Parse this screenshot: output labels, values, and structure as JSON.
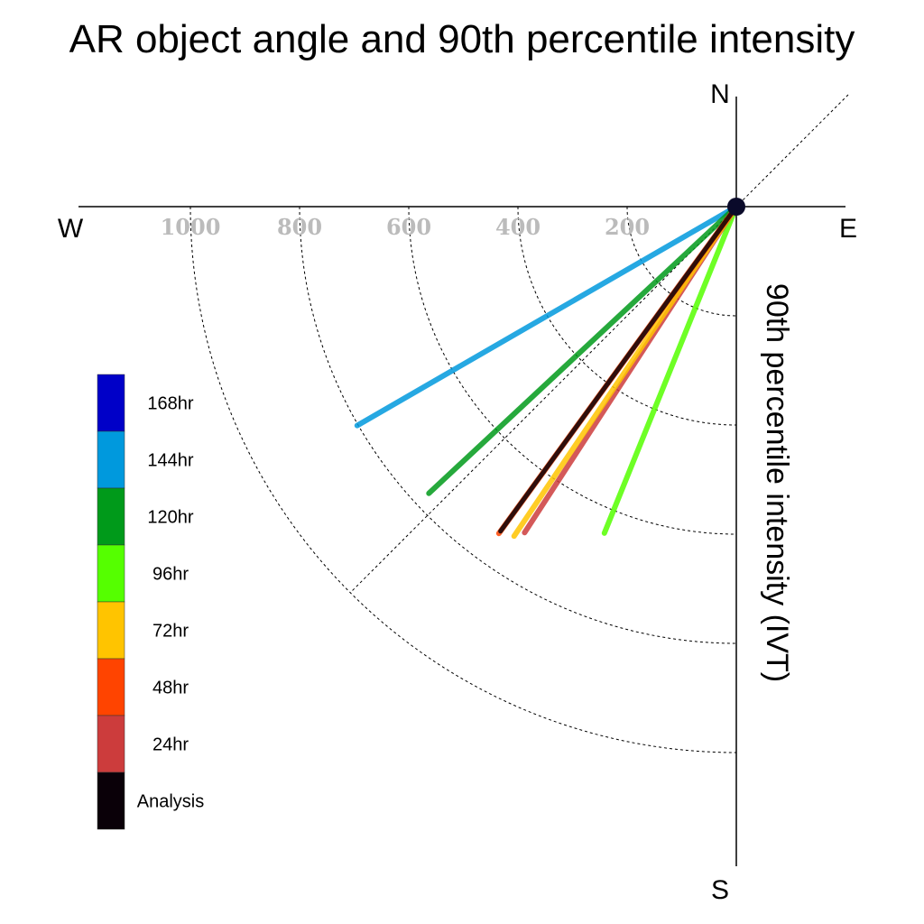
{
  "chart_data": {
    "type": "polar-vector",
    "title": "AR object angle and 90th percentile intensity",
    "radial_label": "90th percentile intensity (IVT)",
    "compass": {
      "north": "N",
      "south": "S",
      "east": "E",
      "west": "W"
    },
    "radial_ticks": [
      200,
      400,
      600,
      800,
      1000
    ],
    "radial_tick_labels": [
      "200",
      "400",
      "600",
      "800",
      "1000"
    ],
    "grid": true,
    "legend_position": "left",
    "series": [
      {
        "name": "168hr",
        "color": "#0000c8",
        "angle_deg": null,
        "ivt": null
      },
      {
        "name": "144hr",
        "color": "#0099dd",
        "angle_deg": 210,
        "ivt": 802
      },
      {
        "name": "120hr",
        "color": "#009a1a",
        "angle_deg": 223,
        "ivt": 770
      },
      {
        "name": "96hr",
        "color": "#55ff00",
        "angle_deg": 248,
        "ivt": 645
      },
      {
        "name": "72hr",
        "color": "#ffc400",
        "angle_deg": 236,
        "ivt": 728
      },
      {
        "name": "48hr",
        "color": "#ff4400",
        "angle_deg": 234,
        "ivt": 740
      },
      {
        "name": "24hr",
        "color": "#cc3c3c",
        "angle_deg": 237,
        "ivt": 712
      },
      {
        "name": "Analysis",
        "color": "#0a0008",
        "angle_deg": 234,
        "ivt": 735
      }
    ]
  }
}
